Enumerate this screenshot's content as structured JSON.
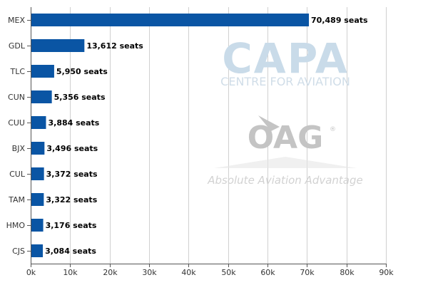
{
  "chart_data": {
    "type": "bar",
    "orientation": "horizontal",
    "categories": [
      "MEX",
      "GDL",
      "TLC",
      "CUN",
      "CUU",
      "BJX",
      "CUL",
      "TAM",
      "HMO",
      "CJS"
    ],
    "values": [
      70489,
      13612,
      5950,
      5356,
      3884,
      3496,
      3372,
      3322,
      3176,
      3084
    ],
    "data_labels": [
      "70,489 seats",
      "13,612 seats",
      "5,950 seats",
      "5,356 seats",
      "3,884 seats",
      "3,496 seats",
      "3,372 seats",
      "3,322 seats",
      "3,176 seats",
      "3,084 seats"
    ],
    "title": "",
    "xlabel": "",
    "ylabel": "",
    "xlim": [
      0,
      90000
    ],
    "x_ticks": [
      0,
      10000,
      20000,
      30000,
      40000,
      50000,
      60000,
      70000,
      80000,
      90000
    ],
    "x_tick_labels": [
      "0k",
      "10k",
      "20k",
      "30k",
      "40k",
      "50k",
      "60k",
      "70k",
      "80k",
      "90k"
    ],
    "grid": "vertical",
    "bar_color": "#0a55a4",
    "grid_color": "#d0d0d0",
    "axis_color": "#555555"
  },
  "watermarks": {
    "capa_logo": "CAPA",
    "capa_subtitle": "CENTRE FOR AVIATION",
    "oag_logo": "OAG",
    "oag_registered": "®",
    "oag_tagline": "Absolute Aviation Advantage"
  }
}
